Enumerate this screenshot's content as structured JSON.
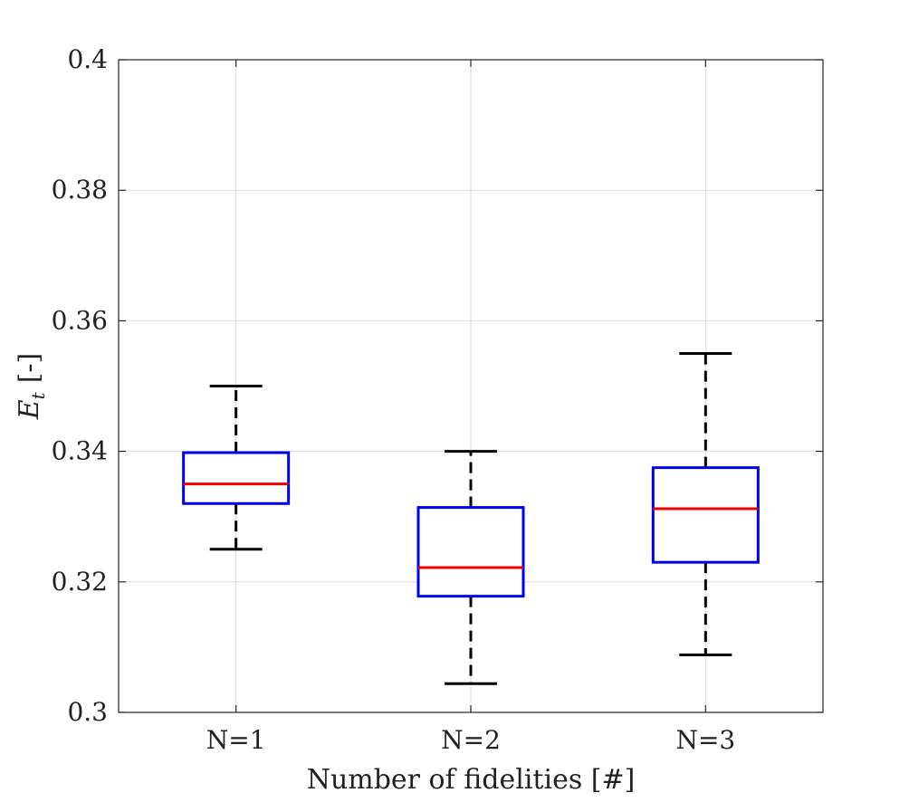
{
  "chart_data": {
    "type": "box",
    "title": "",
    "xlabel": "Number of fidelities [#]",
    "ylabel_main": "E",
    "ylabel_sub": "t",
    "ylabel_unit": "[-]",
    "ylim": [
      0.3,
      0.4
    ],
    "yticks": [
      0.3,
      0.32,
      0.34,
      0.36,
      0.38,
      0.4
    ],
    "ytick_labels": [
      "0.3",
      "0.32",
      "0.34",
      "0.36",
      "0.38",
      "0.4"
    ],
    "grid": true,
    "categories": [
      "N=1",
      "N=2",
      "N=3"
    ],
    "boxes": [
      {
        "label": "N=1",
        "whisker_low": 0.325,
        "q1": 0.332,
        "median": 0.335,
        "q3": 0.3398,
        "whisker_high": 0.35
      },
      {
        "label": "N=2",
        "whisker_low": 0.3044,
        "q1": 0.3178,
        "median": 0.3222,
        "q3": 0.3314,
        "whisker_high": 0.34
      },
      {
        "label": "N=3",
        "whisker_low": 0.3088,
        "q1": 0.323,
        "median": 0.3312,
        "q3": 0.3375,
        "whisker_high": 0.355
      }
    ],
    "colors": {
      "box": "#0000ee",
      "median": "#ee0000",
      "whisker": "#000000",
      "grid": "#dddddd",
      "axis": "#262626"
    }
  }
}
